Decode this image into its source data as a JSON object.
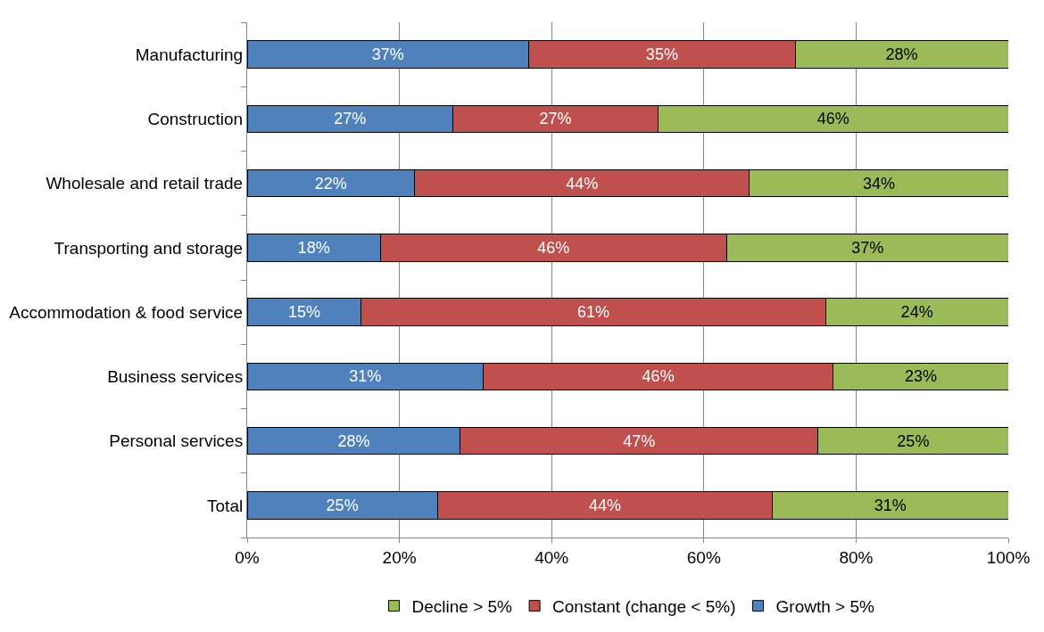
{
  "chart_data": {
    "type": "bar",
    "orientation": "horizontal",
    "stacked": true,
    "categories": [
      "Manufacturing",
      "Construction",
      "Wholesale and retail trade",
      "Transporting and storage",
      "Accommodation & food service",
      "Business services",
      "Personal services",
      "Total"
    ],
    "series": [
      {
        "name": "Growth > 5%",
        "color": "#4f81bd",
        "values": [
          37,
          27,
          22,
          17.5,
          15,
          31,
          28,
          25
        ],
        "value_labels": [
          "37%",
          "27%",
          "22%",
          "18%",
          "15%",
          "31%",
          "28%",
          "25%"
        ]
      },
      {
        "name": "Constant (change < 5%)",
        "color": "#c0504d",
        "values": [
          35,
          27,
          44,
          45.5,
          61,
          46,
          47,
          44
        ],
        "value_labels": [
          "35%",
          "27%",
          "44%",
          "46%",
          "61%",
          "46%",
          "47%",
          "44%"
        ]
      },
      {
        "name": "Decline > 5%",
        "color": "#9bbb59",
        "values": [
          28,
          46,
          34,
          37,
          24,
          23,
          25,
          31
        ],
        "value_labels": [
          "28%",
          "46%",
          "34%",
          "37%",
          "24%",
          "23%",
          "25%",
          "31%"
        ]
      }
    ],
    "xlim": [
      0,
      100
    ],
    "xticks": [
      {
        "value": 0,
        "label": "0%"
      },
      {
        "value": 20,
        "label": "20%"
      },
      {
        "value": 40,
        "label": "40%"
      },
      {
        "value": 60,
        "label": "60%"
      },
      {
        "value": 80,
        "label": "80%"
      },
      {
        "value": 100,
        "label": "100%"
      }
    ],
    "grid": "x",
    "legend": "bottom"
  }
}
